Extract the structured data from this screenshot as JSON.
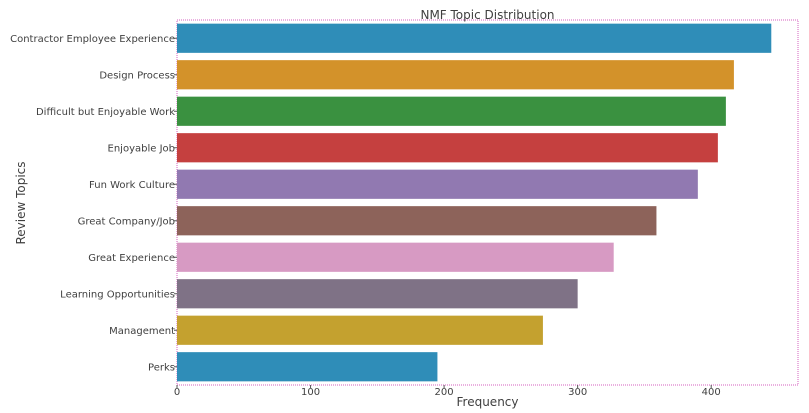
{
  "chart_data": {
    "type": "bar",
    "orientation": "horizontal",
    "title": "NMF Topic Distribution",
    "xlabel": "Frequency",
    "ylabel": "Review Topics",
    "xlim": [
      0,
      465
    ],
    "xticks": [
      0,
      100,
      200,
      300,
      400
    ],
    "grid": false,
    "legend": "none",
    "categories": [
      "Contractor Employee Experience",
      "Design Process",
      "Difficult but Enjoyable Work",
      "Enjoyable Job",
      "Fun Work Culture",
      "Great Company/Job",
      "Great Experience",
      "Learning Opportunities",
      "Management",
      "Perks"
    ],
    "values": [
      445,
      417,
      411,
      405,
      390,
      359,
      327,
      300,
      274,
      195
    ],
    "colors": [
      "#2f8db8",
      "#d3922a",
      "#3a9140",
      "#c5403f",
      "#9179b1",
      "#8d635a",
      "#d79ac3",
      "#7f7286",
      "#c4a12f",
      "#2f8db8"
    ]
  }
}
